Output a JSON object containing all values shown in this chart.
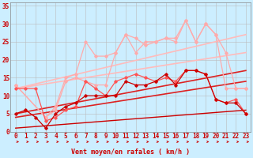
{
  "background_color": "#cceeff",
  "grid_color": "#bbbbbb",
  "xlabel": "Vent moyen/en rafales ( km/h )",
  "xlabel_color": "#cc0000",
  "xlabel_fontsize": 6,
  "tick_color": "#cc0000",
  "tick_fontsize": 5.5,
  "xlim": [
    -0.5,
    23.5
  ],
  "ylim": [
    0,
    36
  ],
  "yticks": [
    0,
    5,
    10,
    15,
    20,
    25,
    30,
    35
  ],
  "xticks": [
    0,
    1,
    2,
    3,
    4,
    5,
    6,
    7,
    8,
    9,
    10,
    11,
    12,
    13,
    14,
    15,
    16,
    17,
    18,
    19,
    20,
    21,
    22,
    23
  ],
  "lines": [
    {
      "x": [
        0,
        3,
        4,
        5,
        6,
        7,
        8,
        9,
        10,
        11,
        12,
        13,
        14,
        15,
        16,
        17,
        18,
        19,
        20,
        21,
        22,
        23
      ],
      "y": [
        13,
        4,
        7,
        15,
        16,
        25,
        21,
        21,
        22,
        27,
        26,
        24,
        25,
        26,
        25,
        31,
        25,
        30,
        27,
        12,
        12,
        12
      ],
      "color": "#ffaaaa",
      "lw": 0.9,
      "marker": "D",
      "ms": 1.8,
      "zorder": 3
    },
    {
      "x": [
        0,
        3,
        4,
        5,
        6,
        7,
        8,
        9,
        10,
        11,
        12,
        13,
        14,
        15,
        16,
        17,
        18,
        19,
        20,
        21,
        22,
        23
      ],
      "y": [
        13,
        4,
        6,
        14,
        15,
        14,
        13,
        13,
        22,
        27,
        22,
        25,
        25,
        26,
        26,
        31,
        25,
        30,
        27,
        22,
        12,
        12
      ],
      "color": "#ffaaaa",
      "lw": 0.9,
      "marker": "D",
      "ms": 1.8,
      "zorder": 3
    },
    {
      "x": [
        0,
        23
      ],
      "y": [
        12,
        27
      ],
      "color": "#ffbbbb",
      "lw": 1.2,
      "marker": null,
      "ms": 0,
      "zorder": 2
    },
    {
      "x": [
        0,
        23
      ],
      "y": [
        12,
        22
      ],
      "color": "#ffbbbb",
      "lw": 1.2,
      "marker": null,
      "ms": 0,
      "zorder": 2
    },
    {
      "x": [
        0,
        1,
        2,
        3,
        4,
        5,
        6,
        7,
        8,
        9,
        10,
        11,
        12,
        13,
        14,
        15,
        16,
        17,
        18,
        19,
        20,
        21,
        22,
        23
      ],
      "y": [
        12,
        12,
        12,
        3,
        4,
        6,
        7,
        14,
        12,
        10,
        14,
        15,
        16,
        15,
        14,
        15,
        14,
        17,
        17,
        16,
        9,
        8,
        9,
        5
      ],
      "color": "#ff5555",
      "lw": 0.9,
      "marker": "D",
      "ms": 1.8,
      "zorder": 4
    },
    {
      "x": [
        0,
        1,
        2,
        3,
        4,
        5,
        6,
        7,
        8,
        9,
        10,
        11,
        12,
        13,
        14,
        15,
        16,
        17,
        18,
        19,
        20,
        21,
        22,
        23
      ],
      "y": [
        5,
        6,
        4,
        1,
        5,
        7,
        8,
        10,
        10,
        10,
        10,
        14,
        13,
        13,
        14,
        16,
        13,
        17,
        17,
        16,
        9,
        8,
        8,
        5
      ],
      "color": "#cc0000",
      "lw": 0.9,
      "marker": "D",
      "ms": 1.8,
      "zorder": 4
    },
    {
      "x": [
        0,
        23
      ],
      "y": [
        5,
        17
      ],
      "color": "#dd2222",
      "lw": 1.2,
      "marker": null,
      "ms": 0,
      "zorder": 2
    },
    {
      "x": [
        0,
        23
      ],
      "y": [
        4,
        14
      ],
      "color": "#dd2222",
      "lw": 1.2,
      "marker": null,
      "ms": 0,
      "zorder": 2
    },
    {
      "x": [
        0,
        23
      ],
      "y": [
        1,
        6
      ],
      "color": "#cc0000",
      "lw": 1.0,
      "marker": null,
      "ms": 0,
      "zorder": 2
    }
  ],
  "wind_arrows": {
    "x": [
      0,
      1,
      2,
      3,
      4,
      5,
      6,
      7,
      8,
      9,
      10,
      11,
      12,
      13,
      14,
      15,
      16,
      17,
      18,
      19,
      20,
      21,
      22,
      23
    ],
    "color": "#cc0000"
  }
}
